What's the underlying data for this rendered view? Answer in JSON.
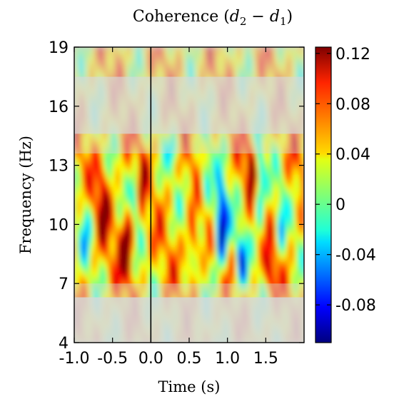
{
  "chart_data": {
    "type": "heatmap",
    "title_text": "Coherence (",
    "title_var_a": "d",
    "title_sub_a": "2",
    "title_minus": " − ",
    "title_var_b": "d",
    "title_sub_b": "1",
    "title_close": ")",
    "xlabel": "Time (s)",
    "ylabel": "Frequency (Hz)",
    "xlim": [
      -1.0,
      2.0
    ],
    "ylim": [
      4,
      19
    ],
    "x_ticks": [
      {
        "value": -1.0,
        "label": "-1.0"
      },
      {
        "value": -0.5,
        "label": "-0.5"
      },
      {
        "value": 0.0,
        "label": "0.0"
      },
      {
        "value": 0.5,
        "label": "0.5"
      },
      {
        "value": 1.0,
        "label": "1.0"
      },
      {
        "value": 1.5,
        "label": "1.5"
      }
    ],
    "y_ticks": [
      {
        "value": 4,
        "label": "4"
      },
      {
        "value": 7,
        "label": "7"
      },
      {
        "value": 10,
        "label": "10"
      },
      {
        "value": 13,
        "label": "13"
      },
      {
        "value": 16,
        "label": "16"
      },
      {
        "value": 19,
        "label": "19"
      }
    ],
    "event_line_x": 0.0,
    "colormap": "jet",
    "colorbar": {
      "vmin": -0.11,
      "vmax": 0.125,
      "ticks": [
        {
          "value": 0.12,
          "label": "0.12"
        },
        {
          "value": 0.08,
          "label": "0.08"
        },
        {
          "value": 0.04,
          "label": "0.04"
        },
        {
          "value": 0,
          "label": "0"
        },
        {
          "value": -0.04,
          "label": "-0.04"
        },
        {
          "value": -0.08,
          "label": "-0.08"
        }
      ]
    },
    "significance_mask_note_hidden": true,
    "masked_regions_hz": [
      [
        4,
        6.3
      ],
      [
        13.6,
        17.5
      ]
    ]
  }
}
